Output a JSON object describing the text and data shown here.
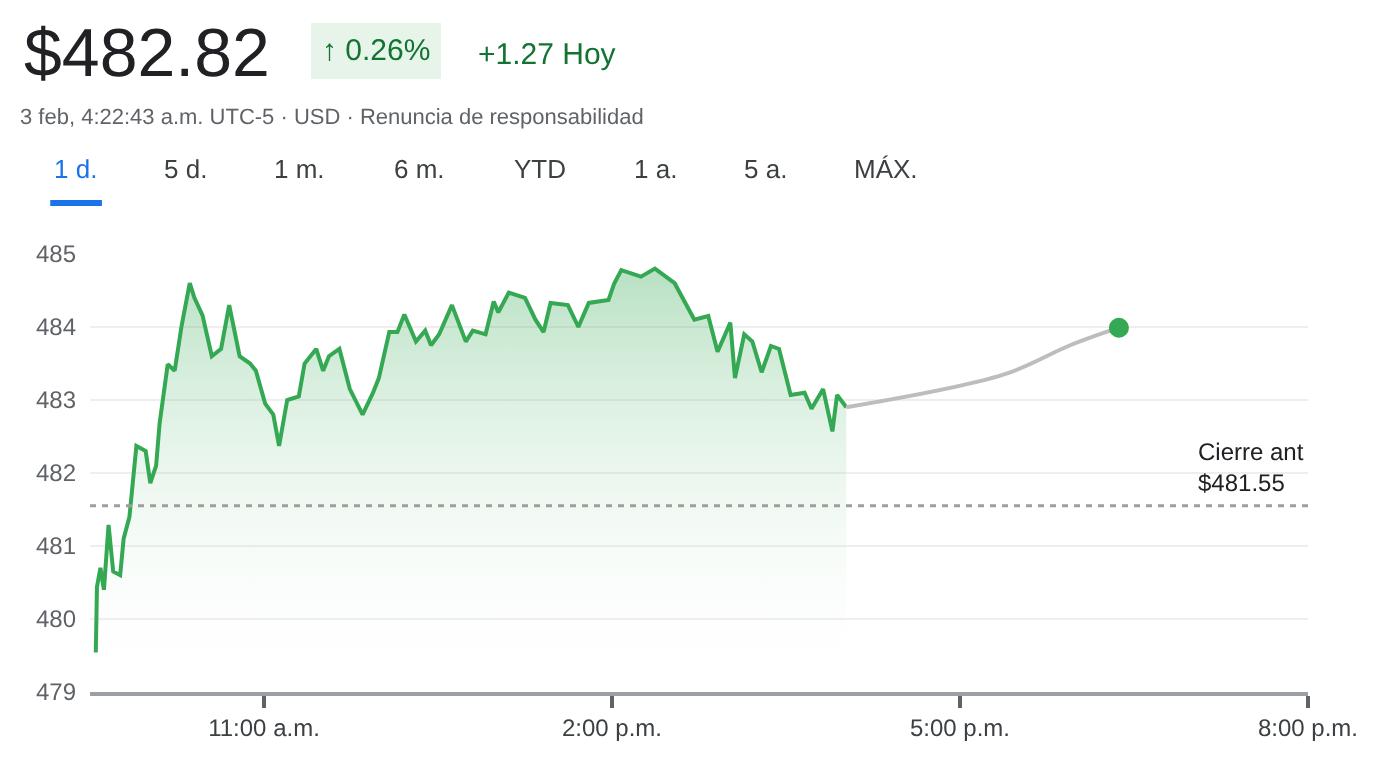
{
  "chart_data": {
    "type": "area",
    "title": "$482.82",
    "subtitle": "3 feb, 4:22:43 a.m. UTC-5 · USD · Renuncia de responsabilidad",
    "annotations": [
      "↑ 0.26%",
      "+1.27 Hoy",
      "1 d.",
      "5 d.",
      "1 m.",
      "6 m.",
      "YTD",
      "1 a.",
      "5 a.",
      "MÁX."
    ],
    "series": [
      {
        "color": "#34a853",
        "x": [
          9.55,
          9.56,
          9.59,
          9.62,
          9.66,
          9.7,
          9.76,
          9.79,
          9.84,
          9.9,
          9.98,
          10.02,
          10.07,
          10.1,
          10.17,
          10.23,
          10.29,
          10.36,
          10.4,
          10.47,
          10.55,
          10.63,
          10.7,
          10.79,
          10.88,
          10.93,
          11.01,
          11.08,
          11.13,
          11.2,
          11.3,
          11.35,
          11.45,
          11.51,
          11.56,
          11.65,
          11.74,
          11.85,
          11.94,
          11.99,
          12.08,
          12.15,
          12.21,
          12.31,
          12.39,
          12.44,
          12.51,
          12.62,
          12.74,
          12.8,
          12.91,
          12.98,
          13.02,
          13.11,
          13.25,
          13.34,
          13.41,
          13.47,
          13.62,
          13.71,
          13.8,
          13.97,
          14.02,
          14.08,
          14.25,
          14.37,
          14.54,
          14.71,
          14.83,
          14.91,
          15.02,
          15.06,
          15.14,
          15.21,
          15.29,
          15.37,
          15.44,
          15.54,
          15.66,
          15.72,
          15.82,
          15.9,
          15.94,
          16.02
        ],
        "values": [
          479.54,
          480.44,
          480.7,
          480.4,
          481.29,
          480.65,
          480.6,
          481.1,
          481.4,
          482.37,
          482.3,
          481.86,
          482.1,
          482.68,
          483.49,
          483.4,
          484.02,
          484.6,
          484.4,
          484.16,
          483.6,
          483.7,
          484.3,
          483.6,
          483.5,
          483.4,
          482.95,
          482.8,
          482.37,
          483.0,
          483.05,
          483.5,
          483.7,
          483.4,
          483.6,
          483.7,
          483.15,
          482.8,
          483.1,
          483.3,
          483.93,
          483.93,
          484.17,
          483.8,
          483.95,
          483.75,
          483.9,
          484.3,
          483.8,
          483.95,
          483.9,
          484.35,
          484.2,
          484.47,
          484.4,
          484.1,
          483.93,
          484.33,
          484.3,
          484.0,
          484.33,
          484.37,
          484.6,
          484.78,
          484.69,
          484.8,
          484.6,
          484.1,
          484.15,
          483.66,
          484.06,
          483.3,
          483.9,
          483.8,
          483.38,
          483.74,
          483.7,
          483.07,
          483.1,
          482.88,
          483.15,
          482.57,
          483.07,
          482.9
        ]
      },
      {
        "type": "line",
        "color": "#bdbdbd",
        "x": [
          16.02,
          17.38,
          17.95,
          18.37
        ],
        "values": [
          482.9,
          483.35,
          483.75,
          483.99
        ]
      },
      {
        "type": "scatter",
        "color": "#34a853",
        "marker": "circle",
        "x": [
          18.37
        ],
        "values": [
          483.99
        ]
      }
    ],
    "xlim": [
      9.5,
      20
    ],
    "xticks": [
      {
        "value": 11,
        "label": "11:00 a.m."
      },
      {
        "value": 14,
        "label": "2:00 p.m."
      },
      {
        "value": 17,
        "label": "5:00 p.m."
      },
      {
        "value": 20,
        "label": "8:00 p.m."
      }
    ],
    "ylim": [
      479,
      485
    ],
    "yticks": [
      479,
      480,
      481,
      482,
      483,
      484,
      485
    ],
    "grid": "y",
    "ref_lines": [
      {
        "axis": "y",
        "value": 481.55,
        "label": "Cierre ant\n$481.55",
        "color": "#9e9e9e",
        "line_style": "dotted"
      }
    ]
  }
}
